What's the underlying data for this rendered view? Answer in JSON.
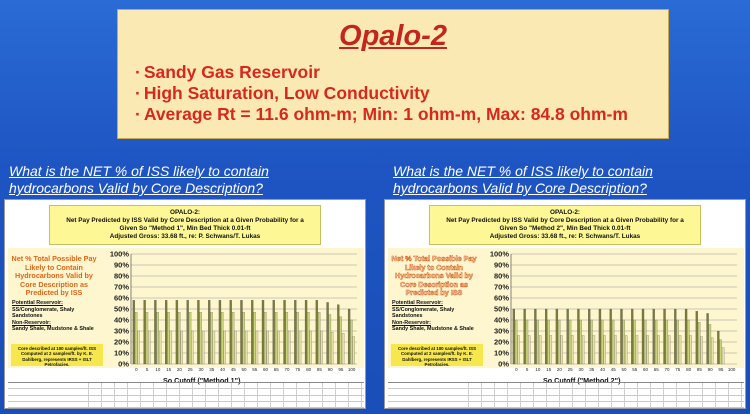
{
  "summary": {
    "title": "Opalo-2",
    "bullets": [
      "Sandy Gas Reservoir",
      "High Saturation, Low Conductivity",
      "Average Rt = 11.6 ohm-m; Min: 1 ohm-m, Max: 84.8 ohm-m"
    ],
    "bullet_marker": "·"
  },
  "left": {
    "question_line1": "What is the NET % of ISS likely to contain",
    "question_line2": "hydrocarbons Valid by Core Description?",
    "head_line1": "OPALO-2:",
    "head_line2": "Net Pay Predicted by ISS Valid by Core Description at a Given Probability for a",
    "head_line3": "Given So \"Method 1\", Min Bed Thick 0.01-ft",
    "head_line4": "Adjusted Gross: 33.68 ft., re: P. Schwans/T. Lukas",
    "caption": "Net % Total Possible Pay Likely to Contain Hydrocarbons Valid by Core Description as Predicted by ISS",
    "notes_title1": "Potential Reservoir:",
    "notes_text1": "SS/Conglomerate, Shaly Sandstones",
    "notes_title2": "Non-Reservoir:",
    "notes_text2": "Sandy Shale, Mudstone & Shale",
    "core_note": "Core described at 100 samples/ft. ISS Computed at 2 samples/ft. by K. E. Dahlberg, represents IRSS + ISLT Petrofacies.",
    "xlabel": "So Cutoff (\"Method 1\")"
  },
  "right": {
    "question_line1": "What is the NET % of ISS likely to contain",
    "question_line2": "hydrocarbons Valid by Core Description?",
    "head_line1": "OPALO-2:",
    "head_line2": "Net Pay Predicted by ISS Valid by Core Description at a Given Probability for a",
    "head_line3": "Given So \"Method 2\", Min Bed Thick 0.01-ft",
    "head_line4": "Adjusted Gross: 33.68 ft., re: P. Schwans/T. Lukas",
    "caption": "Net % Total Possible Pay Likely to Contain Hydrocarbons Valid by Core Description as Predicted by ISS",
    "notes_title1": "Potential Reservoir:",
    "notes_text1": "SS/Conglomerate, Shaly Sandstones",
    "notes_title2": "Non-Reservoir:",
    "notes_text2": "Sandy Shale, Mudstone & Shale",
    "core_note": "Core described at 100 samples/ft. ISS Computed at 2 samples/ft. by K. E. Dahlberg, represents IRSS + ISLT Petrofacies.",
    "xlabel": "So Cutoff (\"Method 2\")"
  },
  "chart_data": [
    {
      "type": "bar",
      "ylim": [
        0,
        100
      ],
      "yticks": [
        "0%",
        "10%",
        "20%",
        "30%",
        "40%",
        "50%",
        "60%",
        "70%",
        "80%",
        "90%",
        "100%"
      ],
      "categories": [
        "0",
        "5",
        "10",
        "15",
        "20",
        "25",
        "30",
        "35",
        "40",
        "45",
        "50",
        "55",
        "60",
        "65",
        "70",
        "75",
        "80",
        "85",
        "90",
        "95",
        "100"
      ],
      "series": [
        {
          "values": [
            58,
            58,
            58,
            58,
            58,
            58,
            58,
            58,
            58,
            58,
            58,
            58,
            58,
            58,
            58,
            58,
            58,
            58,
            56,
            54,
            50
          ]
        },
        {
          "values": [
            47,
            47,
            47,
            47,
            47,
            47,
            47,
            47,
            47,
            47,
            47,
            47,
            47,
            47,
            47,
            47,
            47,
            47,
            45,
            43,
            40
          ]
        },
        {
          "values": [
            30,
            30,
            30,
            30,
            30,
            30,
            30,
            30,
            30,
            30,
            30,
            30,
            30,
            30,
            30,
            30,
            30,
            30,
            29,
            28,
            25
          ]
        }
      ],
      "colors": [
        "#7c7c3a",
        "#c9d37a",
        "#e8e0a8"
      ]
    },
    {
      "type": "bar",
      "ylim": [
        0,
        100
      ],
      "yticks": [
        "0%",
        "10%",
        "20%",
        "30%",
        "40%",
        "50%",
        "60%",
        "70%",
        "80%",
        "90%",
        "100%"
      ],
      "categories": [
        "0",
        "5",
        "10",
        "15",
        "20",
        "25",
        "30",
        "35",
        "40",
        "45",
        "50",
        "55",
        "60",
        "65",
        "70",
        "75",
        "80",
        "85",
        "90",
        "95",
        "100"
      ],
      "series": [
        {
          "values": [
            50,
            50,
            50,
            50,
            50,
            50,
            50,
            50,
            50,
            50,
            50,
            50,
            50,
            50,
            50,
            50,
            50,
            48,
            46,
            30,
            0
          ]
        },
        {
          "values": [
            40,
            40,
            40,
            40,
            40,
            40,
            40,
            40,
            40,
            40,
            40,
            40,
            40,
            40,
            40,
            40,
            40,
            38,
            36,
            22,
            0
          ]
        },
        {
          "values": [
            26,
            26,
            26,
            26,
            26,
            26,
            26,
            26,
            26,
            26,
            26,
            26,
            26,
            26,
            26,
            26,
            26,
            25,
            24,
            15,
            0
          ]
        }
      ],
      "colors": [
        "#7c7c3a",
        "#c9d37a",
        "#e8e0a8"
      ]
    }
  ]
}
